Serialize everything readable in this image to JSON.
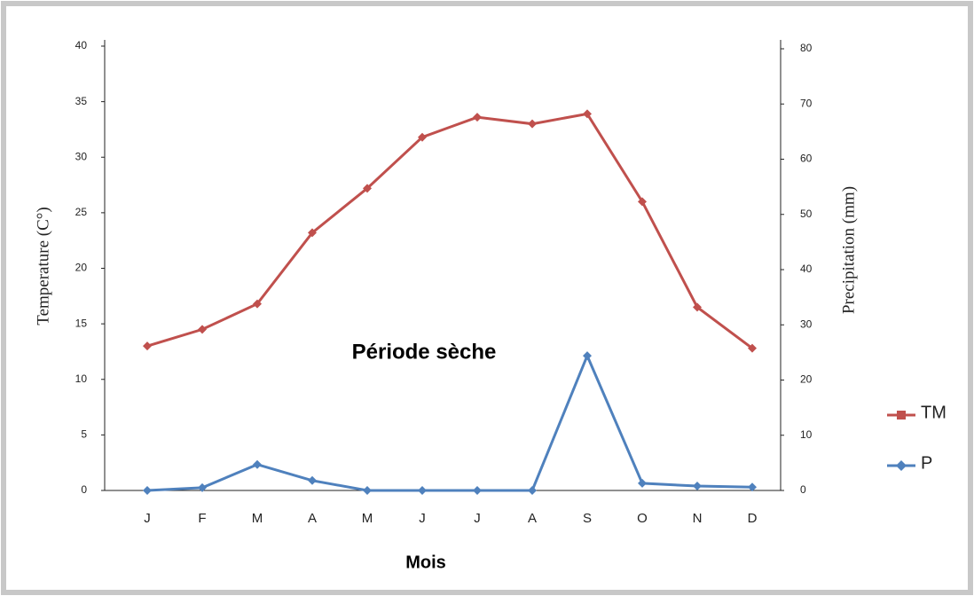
{
  "chart_data": {
    "type": "line",
    "annotation": "Période sèche",
    "x_label": "Mois",
    "y_label": "Temperature (C°)",
    "y2_label": "Precipitation (mm)",
    "categories": [
      "J",
      "F",
      "M",
      "A",
      "M",
      "J",
      "J",
      "A",
      "S",
      "O",
      "N",
      "D"
    ],
    "series": [
      {
        "name": "TM",
        "color": "#c0504d",
        "axis": "y",
        "values": [
          13.0,
          14.5,
          16.8,
          23.2,
          27.2,
          31.8,
          33.6,
          33.0,
          33.9,
          26.0,
          16.5,
          12.8
        ]
      },
      {
        "name": "P",
        "color": "#4f81bd",
        "axis": "y2",
        "values": [
          0,
          0.5,
          4.7,
          1.8,
          0,
          0,
          0,
          0,
          24.4,
          1.3,
          0.8,
          0.6
        ]
      }
    ],
    "ylim": [
      0,
      40
    ],
    "yticks": [
      0,
      5,
      10,
      15,
      20,
      25,
      30,
      35,
      40
    ],
    "y2lim": [
      0,
      80
    ],
    "y2ticks": [
      0,
      10,
      20,
      30,
      40,
      50,
      60,
      70,
      80
    ],
    "legend": "right"
  }
}
